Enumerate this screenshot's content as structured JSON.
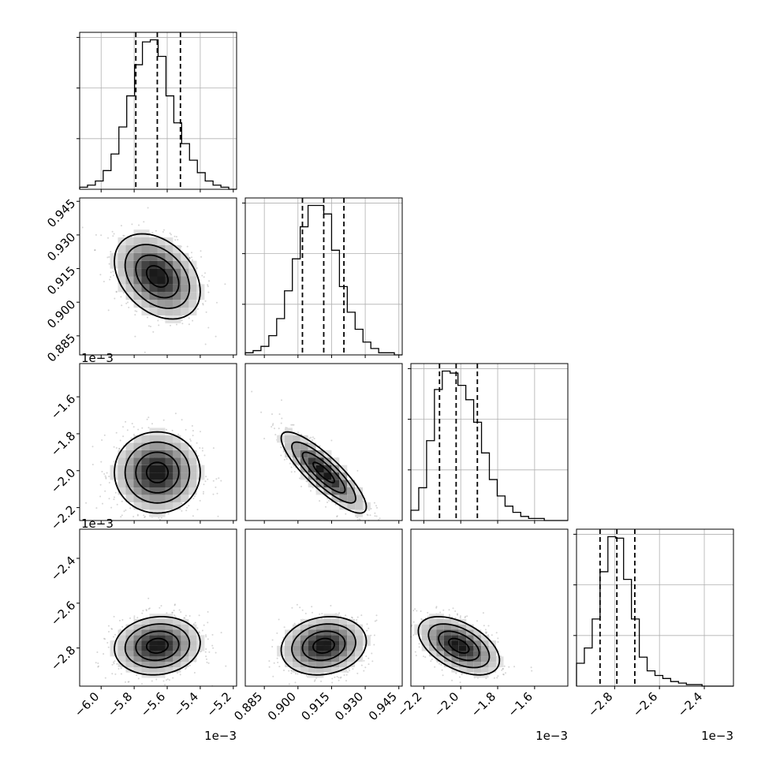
{
  "chart_data": {
    "type": "corner",
    "parameters": [
      {
        "ticks": [
          -6.0,
          -5.8,
          -5.6,
          -5.4,
          -5.2
        ],
        "tick_labels": [
          "−6.0",
          "−5.8",
          "−5.6",
          "−5.4",
          "−5.2"
        ],
        "offset": "1e−3",
        "range": [
          -6.13,
          -5.18
        ],
        "mean": -5.66,
        "sd": 0.13,
        "quantiles": [
          -5.79,
          -5.66,
          -5.52
        ]
      },
      {
        "ticks": [
          0.885,
          0.9,
          0.915,
          0.93,
          0.945
        ],
        "tick_labels": [
          "0.885",
          "0.900",
          "0.915",
          "0.930",
          "0.945"
        ],
        "offset": "",
        "range": [
          0.8765,
          0.9465
        ],
        "mean": 0.9115,
        "sd": 0.0095,
        "quantiles": [
          0.902,
          0.9115,
          0.9205
        ]
      },
      {
        "ticks": [
          -2.2,
          -2.0,
          -1.8,
          -1.6
        ],
        "tick_labels": [
          "−2.2",
          "−2.0",
          "−1.8",
          "−1.6"
        ],
        "offset": "1e−3",
        "range": [
          -2.27,
          -1.42
        ],
        "mean": -2.01,
        "sd": 0.11,
        "quantiles": [
          -2.115,
          -2.025,
          -1.91
        ]
      },
      {
        "ticks": [
          -2.8,
          -2.6,
          -2.4
        ],
        "tick_labels": [
          "−2.8",
          "−2.6",
          "−2.4"
        ],
        "offset": "1e−3",
        "range": [
          -2.97,
          -2.27
        ],
        "mean": -2.79,
        "sd": 0.065,
        "quantiles": [
          -2.865,
          -2.79,
          -2.71
        ]
      }
    ],
    "histograms": [
      [
        1,
        2,
        4,
        9,
        17,
        30,
        45,
        60,
        71,
        72,
        64,
        45,
        32,
        22,
        14,
        8,
        4,
        2,
        1,
        0
      ],
      [
        1,
        2,
        4,
        9,
        17,
        30,
        45,
        60,
        70,
        70,
        66,
        49,
        32,
        20,
        12,
        6,
        3,
        1,
        1,
        0
      ],
      [
        5,
        16,
        39,
        64,
        73,
        72,
        66,
        59,
        48,
        33,
        20,
        12,
        7,
        4,
        2,
        1,
        1,
        0,
        0,
        0
      ],
      [
        15,
        25,
        44,
        75,
        98,
        97,
        70,
        44,
        19,
        10,
        7,
        5,
        3,
        2,
        1,
        1,
        0,
        0,
        0,
        0
      ]
    ],
    "correlations": {
      "1-0": -0.35,
      "2-0": 0.0,
      "2-1": -0.85,
      "3-0": 0.1,
      "3-1": 0.15,
      "3-2": -0.5
    }
  }
}
